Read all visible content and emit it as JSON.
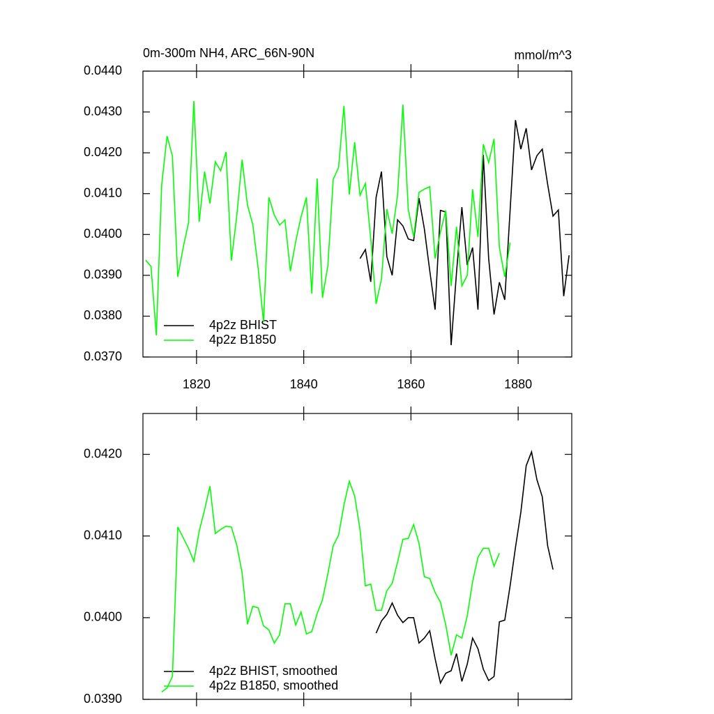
{
  "chart_data": [
    {
      "type": "line",
      "title": "0m-300m NH4, ARC_66N-90N",
      "y_units": "mmol/m^3",
      "xlim": [
        1810,
        1890
      ],
      "xticks": [
        1820,
        1840,
        1860,
        1880
      ],
      "ylim": [
        0.037,
        0.044
      ],
      "yticks": [
        {
          "value": 0.037,
          "label": "0.0370"
        },
        {
          "value": 0.038,
          "label": "0.0380"
        },
        {
          "value": 0.039,
          "label": "0.0390"
        },
        {
          "value": 0.04,
          "label": "0.0400"
        },
        {
          "value": 0.041,
          "label": "0.0410"
        },
        {
          "value": 0.042,
          "label": "0.0420"
        },
        {
          "value": 0.043,
          "label": "0.0430"
        },
        {
          "value": 0.044,
          "label": "0.0440"
        }
      ],
      "legend": "lower left",
      "series": [
        {
          "name": "4p2z BHIST",
          "color": "#000000",
          "x": [
            1850.5,
            1851.5,
            1852.5,
            1853.5,
            1854.5,
            1855.5,
            1856.5,
            1857.5,
            1858.5,
            1859.5,
            1860.5,
            1861.5,
            1862.5,
            1863.5,
            1864.5,
            1865.5,
            1866.5,
            1867.5,
            1868.5,
            1869.5,
            1870.5,
            1871.5,
            1872.5,
            1873.5,
            1874.5,
            1875.5,
            1876.5,
            1877.5,
            1878.5,
            1879.5,
            1880.5,
            1881.5,
            1882.5,
            1883.5,
            1884.5,
            1885.5,
            1886.5,
            1887.5,
            1888.5,
            1889.5
          ],
          "values": [
            0.03941,
            0.03963,
            0.03884,
            0.04091,
            0.04154,
            0.03946,
            0.039,
            0.04036,
            0.04021,
            0.03989,
            0.03985,
            0.04089,
            0.04014,
            0.03912,
            0.03816,
            0.04059,
            0.04055,
            0.03729,
            0.03907,
            0.04067,
            0.03925,
            0.03968,
            0.03816,
            0.04195,
            0.03941,
            0.03804,
            0.03883,
            0.0384,
            0.04059,
            0.0428,
            0.04209,
            0.0426,
            0.04158,
            0.04193,
            0.04209,
            0.04123,
            0.04045,
            0.0406,
            0.03849,
            0.03949
          ]
        },
        {
          "name": "4p2z B1850",
          "color": "#00ff00",
          "x": [
            1810.5,
            1811.5,
            1812.5,
            1813.5,
            1814.5,
            1815.5,
            1816.5,
            1817.5,
            1818.5,
            1819.5,
            1820.5,
            1821.5,
            1822.5,
            1823.5,
            1824.5,
            1825.5,
            1826.5,
            1827.5,
            1828.5,
            1829.5,
            1830.5,
            1831.5,
            1832.5,
            1833.5,
            1834.5,
            1835.5,
            1836.5,
            1837.5,
            1838.5,
            1839.5,
            1840.5,
            1841.5,
            1842.5,
            1843.5,
            1844.5,
            1845.5,
            1846.5,
            1847.5,
            1848.5,
            1849.5,
            1850.5,
            1851.5,
            1852.5,
            1853.5,
            1854.5,
            1855.5,
            1856.5,
            1857.5,
            1858.5,
            1859.5,
            1860.5,
            1861.5,
            1862.5,
            1863.5,
            1864.5,
            1865.5,
            1866.5,
            1867.5,
            1868.5,
            1869.5,
            1870.5,
            1871.5,
            1872.5,
            1873.5,
            1874.5,
            1875.5,
            1876.5,
            1877.5,
            1878.5
          ],
          "values": [
            0.03937,
            0.03922,
            0.03753,
            0.04122,
            0.04241,
            0.04192,
            0.03896,
            0.03968,
            0.04028,
            0.04327,
            0.04031,
            0.04154,
            0.04076,
            0.04178,
            0.04156,
            0.04202,
            0.03936,
            0.04045,
            0.04183,
            0.04072,
            0.04024,
            0.03917,
            0.03785,
            0.04091,
            0.04048,
            0.04023,
            0.04036,
            0.0391,
            0.03983,
            0.04043,
            0.04091,
            0.03855,
            0.04137,
            0.03845,
            0.03924,
            0.04135,
            0.04164,
            0.04315,
            0.04098,
            0.04226,
            0.04096,
            0.04125,
            0.03989,
            0.0383,
            0.03891,
            0.04062,
            0.04002,
            0.04096,
            0.04318,
            0.04062,
            0.03994,
            0.04103,
            0.04111,
            0.04117,
            0.03941,
            0.04006,
            0.04059,
            0.03874,
            0.04019,
            0.03874,
            0.039,
            0.04111,
            0.03994,
            0.04221,
            0.04176,
            0.04234,
            0.03968,
            0.03896,
            0.0398
          ]
        }
      ]
    },
    {
      "type": "line",
      "xlim": [
        1810,
        1890
      ],
      "xticks": [
        1820,
        1840,
        1860,
        1880
      ],
      "ylim": [
        0.039,
        0.0425
      ],
      "yticks": [
        {
          "value": 0.039,
          "label": "0.0390"
        },
        {
          "value": 0.04,
          "label": "0.0400"
        },
        {
          "value": 0.041,
          "label": "0.0410"
        },
        {
          "value": 0.042,
          "label": "0.0420"
        }
      ],
      "legend": "lower left",
      "series": [
        {
          "name": "4p2z BHIST, smoothed",
          "color": "#000000",
          "x": [
            1853.5,
            1854.5,
            1855.5,
            1856.5,
            1857.5,
            1858.5,
            1859.5,
            1860.5,
            1861.5,
            1862.5,
            1863.5,
            1864.5,
            1865.5,
            1866.5,
            1867.5,
            1868.5,
            1869.5,
            1870.5,
            1871.5,
            1872.5,
            1873.5,
            1874.5,
            1875.5,
            1876.5,
            1877.5,
            1878.5,
            1879.5,
            1880.5,
            1881.5,
            1882.5,
            1883.5,
            1884.5,
            1885.5,
            1886.5
          ],
          "values": [
            0.03981,
            0.03996,
            0.04004,
            0.04018,
            0.04003,
            0.03994,
            0.04,
            0.04,
            0.03969,
            0.03975,
            0.03984,
            0.0395,
            0.0392,
            0.03932,
            0.03935,
            0.03956,
            0.03922,
            0.03943,
            0.03975,
            0.03962,
            0.03937,
            0.03923,
            0.03928,
            0.03995,
            0.03997,
            0.04039,
            0.04086,
            0.04129,
            0.04186,
            0.04203,
            0.04169,
            0.04148,
            0.04088,
            0.04059
          ]
        },
        {
          "name": "4p2z B1850, smoothed",
          "color": "#00ff00",
          "x": [
            1813.5,
            1814.5,
            1815.5,
            1816.5,
            1817.5,
            1818.5,
            1819.5,
            1820.5,
            1821.5,
            1822.5,
            1823.5,
            1824.5,
            1825.5,
            1826.5,
            1827.5,
            1828.5,
            1829.5,
            1830.5,
            1831.5,
            1832.5,
            1833.5,
            1834.5,
            1835.5,
            1836.5,
            1837.5,
            1838.5,
            1839.5,
            1840.5,
            1841.5,
            1842.5,
            1843.5,
            1844.5,
            1845.5,
            1846.5,
            1847.5,
            1848.5,
            1849.5,
            1850.5,
            1851.5,
            1852.5,
            1853.5,
            1854.5,
            1855.5,
            1856.5,
            1857.5,
            1858.5,
            1859.5,
            1860.5,
            1861.5,
            1862.5,
            1863.5,
            1864.5,
            1865.5,
            1866.5,
            1867.5,
            1868.5,
            1869.5,
            1870.5,
            1871.5,
            1872.5,
            1873.5,
            1874.5,
            1875.5,
            1876.5
          ],
          "values": [
            0.03909,
            0.03914,
            0.03928,
            0.04111,
            0.04098,
            0.04085,
            0.04069,
            0.04106,
            0.04132,
            0.04161,
            0.04103,
            0.04108,
            0.04112,
            0.04111,
            0.04089,
            0.04055,
            0.03992,
            0.04014,
            0.04012,
            0.0399,
            0.03985,
            0.03969,
            0.03979,
            0.04017,
            0.04017,
            0.03991,
            0.04007,
            0.0398,
            0.03983,
            0.04005,
            0.04022,
            0.04054,
            0.04088,
            0.04101,
            0.04138,
            0.04167,
            0.04149,
            0.04108,
            0.04039,
            0.04041,
            0.04009,
            0.04009,
            0.04033,
            0.04042,
            0.04068,
            0.04096,
            0.04097,
            0.04114,
            0.04091,
            0.0405,
            0.04048,
            0.04031,
            0.04019,
            0.03991,
            0.03954,
            0.03979,
            0.03975,
            0.04002,
            0.04044,
            0.04074,
            0.04085,
            0.04085,
            0.04063,
            0.04079
          ]
        }
      ]
    }
  ]
}
